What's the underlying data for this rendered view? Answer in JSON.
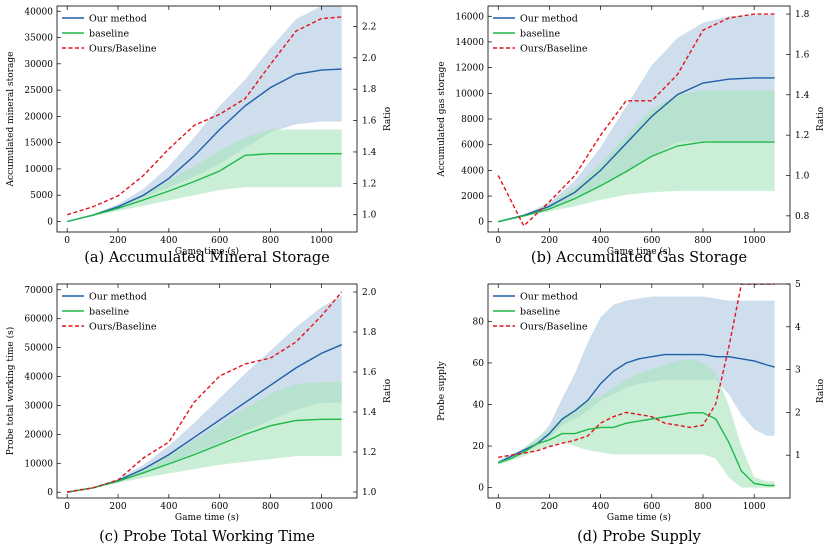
{
  "chart_data": [
    {
      "type": "line",
      "caption": "(a) Accumulated Mineral Storage",
      "xlabel": "Game time (s)",
      "ylabel": "Accumulated mineral storage",
      "y2label": "Ratio",
      "xlim": [
        -40,
        1140
      ],
      "ylim": [
        -2000,
        41000
      ],
      "y2lim": [
        0.89,
        2.33
      ],
      "xticks": [
        0,
        200,
        400,
        600,
        800,
        1000
      ],
      "yticks": [
        0,
        5000,
        10000,
        15000,
        20000,
        25000,
        30000,
        35000,
        40000
      ],
      "y2ticks": [
        1.0,
        1.2,
        1.4,
        1.6,
        1.8,
        2.0,
        2.2
      ],
      "legend": [
        "Our method",
        "baseline",
        "Ours/Baseline"
      ],
      "x": [
        0,
        100,
        200,
        300,
        400,
        500,
        600,
        700,
        800,
        900,
        1000,
        1080
      ],
      "series": [
        {
          "name": "Our method",
          "values": [
            0,
            1200,
            2800,
            5000,
            8200,
            12500,
            17500,
            22000,
            25500,
            28000,
            28800,
            29000
          ]
        },
        {
          "name": "baseline",
          "values": [
            0,
            1200,
            2500,
            4100,
            5800,
            7600,
            9600,
            12600,
            12900,
            12900,
            12900,
            12900
          ]
        },
        {
          "name": "Ours/Baseline",
          "axis": "right",
          "values": [
            1.0,
            1.05,
            1.12,
            1.25,
            1.42,
            1.57,
            1.64,
            1.74,
            1.96,
            2.17,
            2.25,
            2.26
          ]
        }
      ],
      "bands": [
        {
          "name": "Our method",
          "lower": [
            0,
            1100,
            2500,
            4500,
            6500,
            8500,
            11000,
            14000,
            17000,
            18500,
            19000,
            19000
          ],
          "upper": [
            0,
            1300,
            3300,
            6200,
            10500,
            16000,
            22000,
            27000,
            33000,
            38500,
            41000,
            41000
          ]
        },
        {
          "name": "baseline",
          "lower": [
            0,
            1000,
            2000,
            3000,
            4000,
            5000,
            6000,
            6500,
            6500,
            6500,
            6500,
            6500
          ],
          "upper": [
            0,
            1300,
            3000,
            5200,
            7800,
            10500,
            13500,
            16000,
            17500,
            17500,
            17500,
            17500
          ]
        }
      ]
    },
    {
      "type": "line",
      "caption": "(b) Accumulated Gas Storage",
      "xlabel": "Game time (s)",
      "ylabel": "Accumulated gas storage",
      "y2label": "Ratio",
      "xlim": [
        -40,
        1140
      ],
      "ylim": [
        -800,
        16800
      ],
      "y2lim": [
        0.72,
        1.84
      ],
      "xticks": [
        0,
        200,
        400,
        600,
        800,
        1000
      ],
      "yticks": [
        0,
        2000,
        4000,
        6000,
        8000,
        10000,
        12000,
        14000,
        16000
      ],
      "y2ticks": [
        0.8,
        1.0,
        1.2,
        1.4,
        1.6,
        1.8
      ],
      "legend": [
        "Our method",
        "baseline",
        "Ours/Baseline"
      ],
      "x": [
        0,
        100,
        200,
        300,
        400,
        500,
        600,
        700,
        800,
        900,
        1000,
        1080
      ],
      "series": [
        {
          "name": "Our method",
          "values": [
            0,
            500,
            1200,
            2300,
            4000,
            6100,
            8200,
            9900,
            10800,
            11100,
            11200,
            11200
          ]
        },
        {
          "name": "baseline",
          "values": [
            0,
            450,
            1000,
            1800,
            2800,
            3900,
            5100,
            5900,
            6200,
            6200,
            6200,
            6200
          ]
        },
        {
          "name": "Ours/Baseline",
          "axis": "right",
          "values": [
            1.0,
            0.75,
            0.87,
            1.0,
            1.2,
            1.37,
            1.37,
            1.5,
            1.72,
            1.78,
            1.8,
            1.8
          ]
        }
      ],
      "bands": [
        {
          "name": "Our method",
          "lower": [
            0,
            450,
            1000,
            1800,
            2800,
            3900,
            5100,
            6200,
            6300,
            6200,
            6200,
            6200
          ],
          "upper": [
            0,
            550,
            1500,
            3200,
            5800,
            9000,
            12200,
            14300,
            15500,
            16000,
            16100,
            16100
          ]
        },
        {
          "name": "baseline",
          "lower": [
            0,
            400,
            800,
            1200,
            1700,
            2100,
            2300,
            2400,
            2400,
            2400,
            2400,
            2400
          ],
          "upper": [
            0,
            500,
            1400,
            2700,
            4500,
            6700,
            8800,
            9900,
            10200,
            10200,
            10200,
            10200
          ]
        }
      ]
    },
    {
      "type": "line",
      "caption": "(c) Probe Total Working Time",
      "xlabel": "Game time (s)",
      "ylabel": "Probe total working time (s)",
      "y2label": "Ratio",
      "xlim": [
        -40,
        1140
      ],
      "ylim": [
        -2000,
        72000
      ],
      "y2lim": [
        0.97,
        2.04
      ],
      "xticks": [
        0,
        200,
        400,
        600,
        800,
        1000
      ],
      "yticks": [
        0,
        10000,
        20000,
        30000,
        40000,
        50000,
        60000,
        70000
      ],
      "y2ticks": [
        1.0,
        1.2,
        1.4,
        1.6,
        1.8,
        2.0
      ],
      "legend": [
        "Our method",
        "baseline",
        "Ours/Baseline"
      ],
      "x": [
        0,
        100,
        200,
        300,
        400,
        500,
        600,
        700,
        800,
        900,
        1000,
        1080
      ],
      "series": [
        {
          "name": "Our method",
          "values": [
            0,
            1500,
            4000,
            8000,
            13000,
            19000,
            25000,
            31000,
            37000,
            43000,
            48000,
            51000
          ]
        },
        {
          "name": "baseline",
          "values": [
            0,
            1500,
            3800,
            6700,
            9800,
            13000,
            16500,
            20000,
            23000,
            24800,
            25200,
            25200
          ]
        },
        {
          "name": "Ours/Baseline",
          "axis": "right",
          "values": [
            1.0,
            1.02,
            1.06,
            1.17,
            1.25,
            1.45,
            1.58,
            1.64,
            1.67,
            1.75,
            1.88,
            2.0
          ]
        }
      ],
      "bands": [
        {
          "name": "Our method",
          "lower": [
            0,
            1400,
            3500,
            6500,
            10000,
            13500,
            17000,
            21000,
            25000,
            28500,
            31000,
            31000
          ],
          "upper": [
            0,
            1600,
            4500,
            9500,
            16000,
            24000,
            32500,
            41000,
            49000,
            57000,
            64000,
            68000
          ]
        },
        {
          "name": "baseline",
          "lower": [
            0,
            1300,
            3200,
            5000,
            6500,
            8000,
            9500,
            10500,
            11500,
            12500,
            12500,
            12500
          ],
          "upper": [
            0,
            1600,
            4300,
            8300,
            13000,
            18000,
            23500,
            29000,
            34000,
            37500,
            38000,
            38000
          ]
        }
      ]
    },
    {
      "type": "line",
      "caption": "(d) Probe Supply",
      "xlabel": "Game time (s)",
      "ylabel": "Probe supply",
      "y2label": "Ratio",
      "xlim": [
        -40,
        1140
      ],
      "ylim": [
        -5,
        98
      ],
      "y2lim": [
        0,
        5
      ],
      "xticks": [
        0,
        200,
        400,
        600,
        800,
        1000
      ],
      "yticks": [
        0,
        20,
        40,
        60,
        80
      ],
      "y2ticks": [
        1,
        2,
        3,
        4,
        5
      ],
      "legend": [
        "Our method",
        "baseline",
        "Ours/Baseline"
      ],
      "x": [
        0,
        50,
        100,
        150,
        200,
        250,
        300,
        350,
        400,
        450,
        500,
        550,
        600,
        650,
        700,
        750,
        800,
        850,
        900,
        950,
        1000,
        1050,
        1080
      ],
      "series": [
        {
          "name": "Our method",
          "values": [
            12,
            15,
            18,
            21,
            26,
            33,
            37,
            42,
            50,
            56,
            60,
            62,
            63,
            64,
            64,
            64,
            64,
            63,
            63,
            62,
            61,
            59,
            58
          ]
        },
        {
          "name": "baseline",
          "values": [
            12,
            14,
            17,
            21,
            23,
            26,
            26,
            28,
            29,
            29,
            31,
            32,
            33,
            34,
            35,
            36,
            36,
            33,
            22,
            8,
            2,
            1,
            1
          ]
        },
        {
          "name": "Ours/Baseline",
          "axis": "right",
          "values": [
            0.95,
            1.0,
            1.05,
            1.1,
            1.2,
            1.28,
            1.35,
            1.45,
            1.75,
            1.9,
            2.0,
            1.95,
            1.9,
            1.75,
            1.7,
            1.65,
            1.7,
            2.2,
            3.5,
            5.0,
            5.0,
            5.0,
            5.0
          ]
        }
      ],
      "bands": [
        {
          "name": "Our method",
          "lower": [
            11,
            14,
            17,
            20,
            24,
            30,
            33,
            37,
            42,
            45,
            48,
            50,
            51,
            52,
            52,
            52,
            52,
            52,
            45,
            35,
            28,
            25,
            25
          ],
          "upper": [
            13,
            16,
            19,
            23,
            30,
            43,
            55,
            70,
            82,
            88,
            90,
            91,
            92,
            92,
            92,
            92,
            92,
            91,
            90,
            90,
            90,
            90,
            90
          ]
        },
        {
          "name": "baseline",
          "lower": [
            11,
            13,
            15,
            18,
            20,
            22,
            20,
            18,
            17,
            16,
            16,
            16,
            16,
            16,
            16,
            16,
            16,
            14,
            5,
            0,
            0,
            0,
            0
          ],
          "upper": [
            13,
            15,
            19,
            24,
            28,
            34,
            38,
            42,
            44,
            48,
            52,
            55,
            57,
            59,
            61,
            62,
            60,
            55,
            40,
            20,
            5,
            3,
            3
          ]
        }
      ]
    }
  ],
  "colors": {
    "ours": "#1f5fa8",
    "ours_band": "#a7c3df",
    "baseline": "#1fb84a",
    "baseline_band": "#a7e4bb",
    "overlap_band": "#82c6b4",
    "ratio": "#e3121b"
  }
}
